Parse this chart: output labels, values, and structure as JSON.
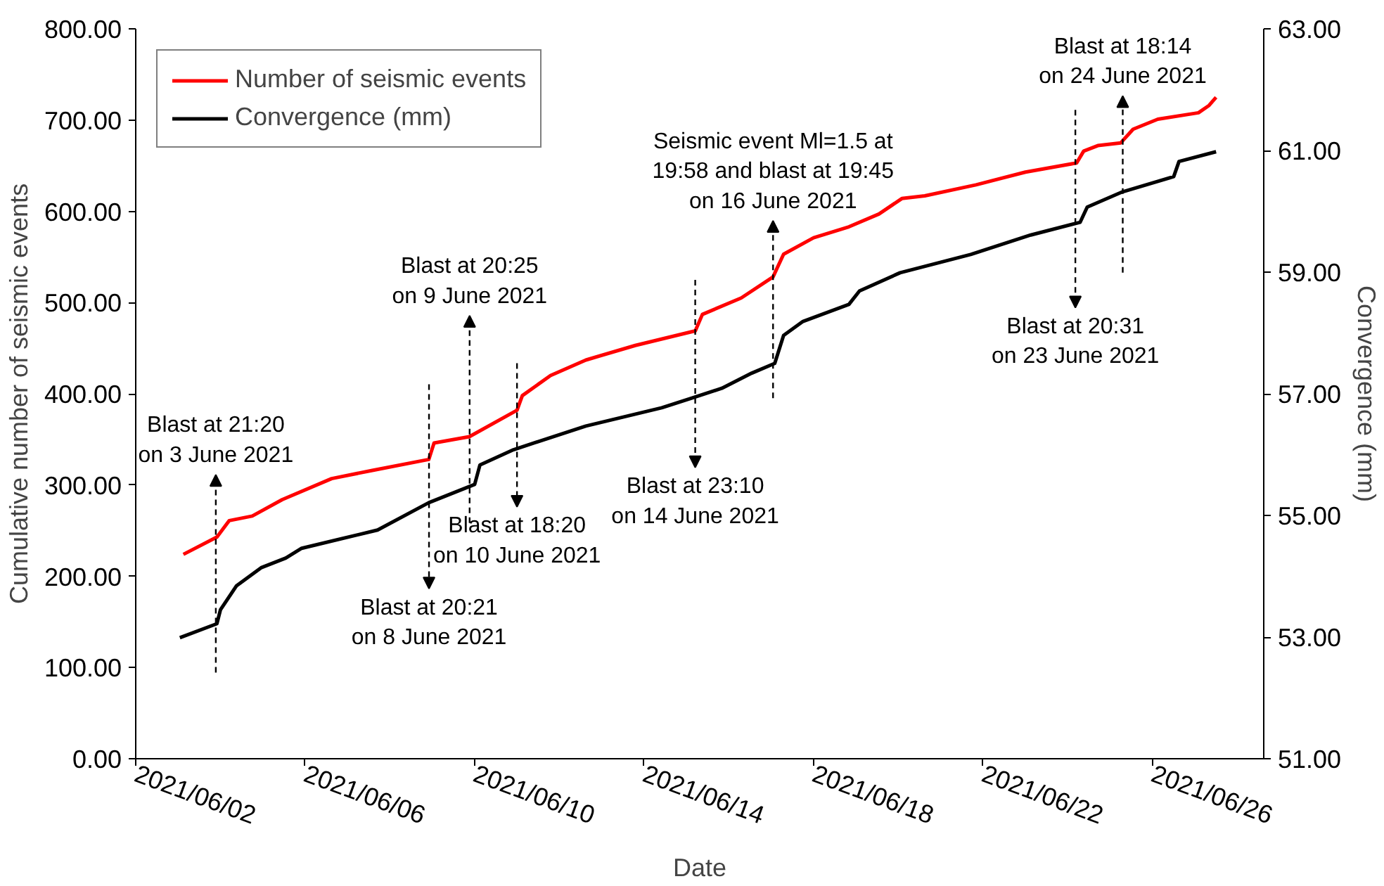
{
  "chart_data": {
    "type": "line",
    "xlabel": "Date",
    "ylabel": "Cumulative number of seismic events",
    "y2label": "Convergence (mm)",
    "xlim": [
      "2021-06-02",
      "2021-06-28T15:00"
    ],
    "xticks": [
      {
        "value": "2021-06-02",
        "label": "2021/06/02"
      },
      {
        "value": "2021-06-06",
        "label": "2021/06/06"
      },
      {
        "value": "2021-06-10",
        "label": "2021/06/10"
      },
      {
        "value": "2021-06-14",
        "label": "2021/06/14"
      },
      {
        "value": "2021-06-18",
        "label": "2021/06/18"
      },
      {
        "value": "2021-06-22",
        "label": "2021/06/22"
      },
      {
        "value": "2021-06-26",
        "label": "2021/06/26"
      }
    ],
    "ylim": [
      0,
      800
    ],
    "yticks": [
      {
        "value": 0,
        "label": "0.00"
      },
      {
        "value": 100,
        "label": "100.00"
      },
      {
        "value": 200,
        "label": "200.00"
      },
      {
        "value": 300,
        "label": "300.00"
      },
      {
        "value": 400,
        "label": "400.00"
      },
      {
        "value": 500,
        "label": "500.00"
      },
      {
        "value": 600,
        "label": "600.00"
      },
      {
        "value": 700,
        "label": "700.00"
      },
      {
        "value": 800,
        "label": "800.00"
      }
    ],
    "y2lim": [
      51,
      63
    ],
    "y2ticks": [
      {
        "value": 51,
        "label": "51.00"
      },
      {
        "value": 53,
        "label": "53.00"
      },
      {
        "value": 55,
        "label": "55.00"
      },
      {
        "value": 57,
        "label": "57.00"
      },
      {
        "value": 59,
        "label": "59.00"
      },
      {
        "value": 61,
        "label": "61.00"
      },
      {
        "value": 63,
        "label": "63.00"
      }
    ],
    "grid": false,
    "legend": "top left",
    "marker": "none",
    "line_style": "solid",
    "series": [
      {
        "name": "Number of seismic events",
        "color": "#ff0000",
        "x": [
          "2021-06-03T03:00",
          "2021-06-03T22:00",
          "2021-06-04T05:00",
          "2021-06-04T18:00",
          "2021-06-05T11:00",
          "2021-06-06T15:00",
          "2021-06-07T14:00",
          "2021-06-08T22:00",
          "2021-06-09T01:00",
          "2021-06-09T21:00",
          "2021-06-11T00:00",
          "2021-06-11T03:00",
          "2021-06-11T19:00",
          "2021-06-12T15:00",
          "2021-06-13T19:00",
          "2021-06-15T05:00",
          "2021-06-15T09:00",
          "2021-06-16T07:00",
          "2021-06-17T01:00",
          "2021-06-17T07:00",
          "2021-06-18T00:00",
          "2021-06-18T20:00",
          "2021-06-19T13:00",
          "2021-06-20T02:00",
          "2021-06-20T15:00",
          "2021-06-21T20:00",
          "2021-06-23T00:00",
          "2021-06-24T05:00",
          "2021-06-24T09:00",
          "2021-06-24T17:00",
          "2021-06-25T06:00",
          "2021-06-25T13:00",
          "2021-06-26T03:00",
          "2021-06-27T02:00",
          "2021-06-27T08:00",
          "2021-06-27T12:00"
        ],
        "values": [
          224,
          243,
          261,
          266,
          284,
          307,
          316,
          328,
          346,
          353,
          382,
          398,
          420,
          437,
          453,
          469,
          487,
          505,
          528,
          553,
          571,
          583,
          597,
          614,
          617,
          629,
          643,
          653,
          666,
          672,
          675,
          690,
          701,
          708,
          716,
          725
        ]
      },
      {
        "name": "Convergence (mm)",
        "color": "#000000",
        "axis": "y2",
        "x": [
          "2021-06-03T01:00",
          "2021-06-03T22:00",
          "2021-06-04T00:00",
          "2021-06-04T09:00",
          "2021-06-04T23:00",
          "2021-06-05T13:00",
          "2021-06-05T22:00",
          "2021-06-07T17:00",
          "2021-06-08T22:00",
          "2021-06-10T00:00",
          "2021-06-10T03:00",
          "2021-06-10T22:00",
          "2021-06-12T15:00",
          "2021-06-14T10:00",
          "2021-06-15T03:00",
          "2021-06-15T20:00",
          "2021-06-16T13:00",
          "2021-06-17T02:00",
          "2021-06-17T07:00",
          "2021-06-17T18:00",
          "2021-06-18T20:00",
          "2021-06-19T02:00",
          "2021-06-20T01:00",
          "2021-06-21T17:00",
          "2021-06-23T03:00",
          "2021-06-24T07:00",
          "2021-06-24T11:00",
          "2021-06-25T07:00",
          "2021-06-26T12:00",
          "2021-06-26T15:00",
          "2021-06-27T12:00"
        ],
        "values": [
          52.99,
          53.22,
          53.45,
          53.84,
          54.14,
          54.3,
          54.46,
          54.76,
          55.21,
          55.51,
          55.83,
          56.08,
          56.47,
          56.77,
          56.93,
          57.09,
          57.34,
          57.5,
          57.96,
          58.19,
          58.47,
          58.69,
          58.99,
          59.29,
          59.61,
          59.82,
          60.07,
          60.32,
          60.57,
          60.82,
          60.98
        ]
      }
    ],
    "annotations": [
      "Blast at 21:20\non 3 June 2021",
      "Blast at 20:21\non 8 June 2021",
      "Blast at 20:25\non 9 June 2021",
      "Blast at 18:20\non 10 June 2021",
      "Blast at 23:10\non 14 June 2021",
      "Seismic event Ml=1.5 at\n19:58 and blast at 19:45\non 16 June 2021",
      "Blast at 20:31\non 23 June 2021",
      "Blast at 18:14\non 24 June 2021"
    ]
  }
}
